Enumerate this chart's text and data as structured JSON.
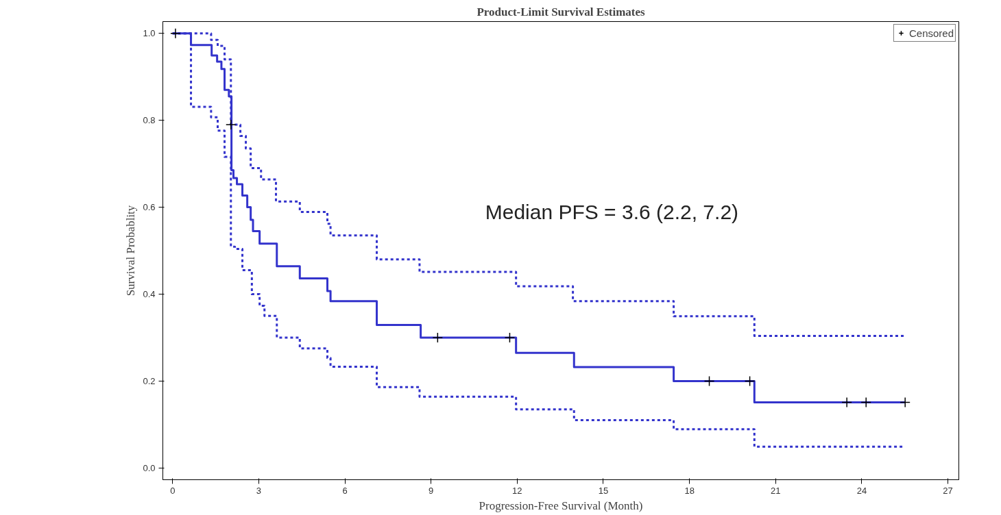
{
  "chart_data": {
    "type": "step",
    "title": "Product-Limit Survival Estimates",
    "xlabel": "Progression-Free Survival (Month)",
    "ylabel": "Survival Probablity",
    "annotations": [
      "Median PFS = 3.6 (2.2, 7.2)"
    ],
    "xlim": [
      -0.34,
      27.38
    ],
    "ylim": [
      -0.027,
      1.027
    ],
    "xticks": [
      0,
      3,
      6,
      9,
      12,
      15,
      18,
      21,
      24,
      27
    ],
    "yticks": [
      {
        "value": 0,
        "label": "0.0"
      },
      0.2,
      0.4,
      0.6,
      0.8,
      {
        "value": 1,
        "label": "1.0"
      }
    ],
    "grid": false,
    "legend": "top right",
    "line_style": "solid",
    "series": [
      {
        "color": "#3333cc",
        "x": [
          0,
          0.64,
          1.36,
          1.55,
          1.7,
          1.81,
          1.96,
          2.05,
          2.12,
          2.24,
          2.43,
          2.6,
          2.72,
          2.8,
          3.03,
          3.63,
          4.43,
          5.39,
          5.5,
          7.11,
          8.64,
          11.96,
          13.98,
          17.45,
          20.26,
          25.5
        ],
        "values": [
          1.0,
          0.973,
          0.949,
          0.935,
          0.918,
          0.87,
          0.855,
          0.685,
          0.667,
          0.653,
          0.627,
          0.6,
          0.571,
          0.545,
          0.516,
          0.464,
          0.436,
          0.407,
          0.384,
          0.329,
          0.3,
          0.265,
          0.232,
          0.2,
          0.151,
          0.151
        ]
      },
      {
        "color": "#3333cc",
        "line_style": "dashed",
        "x": [
          0,
          1.34,
          1.57,
          1.81,
          2.03,
          2.36,
          2.55,
          2.72,
          3.08,
          3.6,
          4.43,
          5.39,
          5.5,
          7.11,
          8.6,
          11.96,
          13.94,
          17.45,
          20.26,
          25.5
        ],
        "values": [
          1.0,
          0.985,
          0.971,
          0.94,
          0.79,
          0.764,
          0.735,
          0.69,
          0.664,
          0.613,
          0.589,
          0.562,
          0.535,
          0.48,
          0.451,
          0.418,
          0.384,
          0.349,
          0.304,
          0.304
        ]
      },
      {
        "color": "#3333cc",
        "line_style": "dashed",
        "x": [
          0,
          0.64,
          1.34,
          1.57,
          1.81,
          2.03,
          2.17,
          2.43,
          2.76,
          3.03,
          3.2,
          3.63,
          4.43,
          5.39,
          5.5,
          7.11,
          8.6,
          11.96,
          13.98,
          17.45,
          20.26,
          25.5
        ],
        "values": [
          1.0,
          0.831,
          0.807,
          0.776,
          0.716,
          0.509,
          0.504,
          0.455,
          0.4,
          0.373,
          0.35,
          0.3,
          0.275,
          0.253,
          0.233,
          0.186,
          0.164,
          0.135,
          0.11,
          0.089,
          0.049,
          0.049
        ]
      },
      {
        "name": "Censored",
        "type": "scatter",
        "marker": "cross",
        "color": "#000000",
        "x": [
          0.1,
          2.03,
          9.23,
          11.74,
          18.69,
          20.1,
          23.48,
          24.15,
          25.51
        ],
        "values": [
          1.0,
          0.79,
          0.3,
          0.3,
          0.2,
          0.2,
          0.151,
          0.151,
          0.151
        ]
      }
    ]
  }
}
